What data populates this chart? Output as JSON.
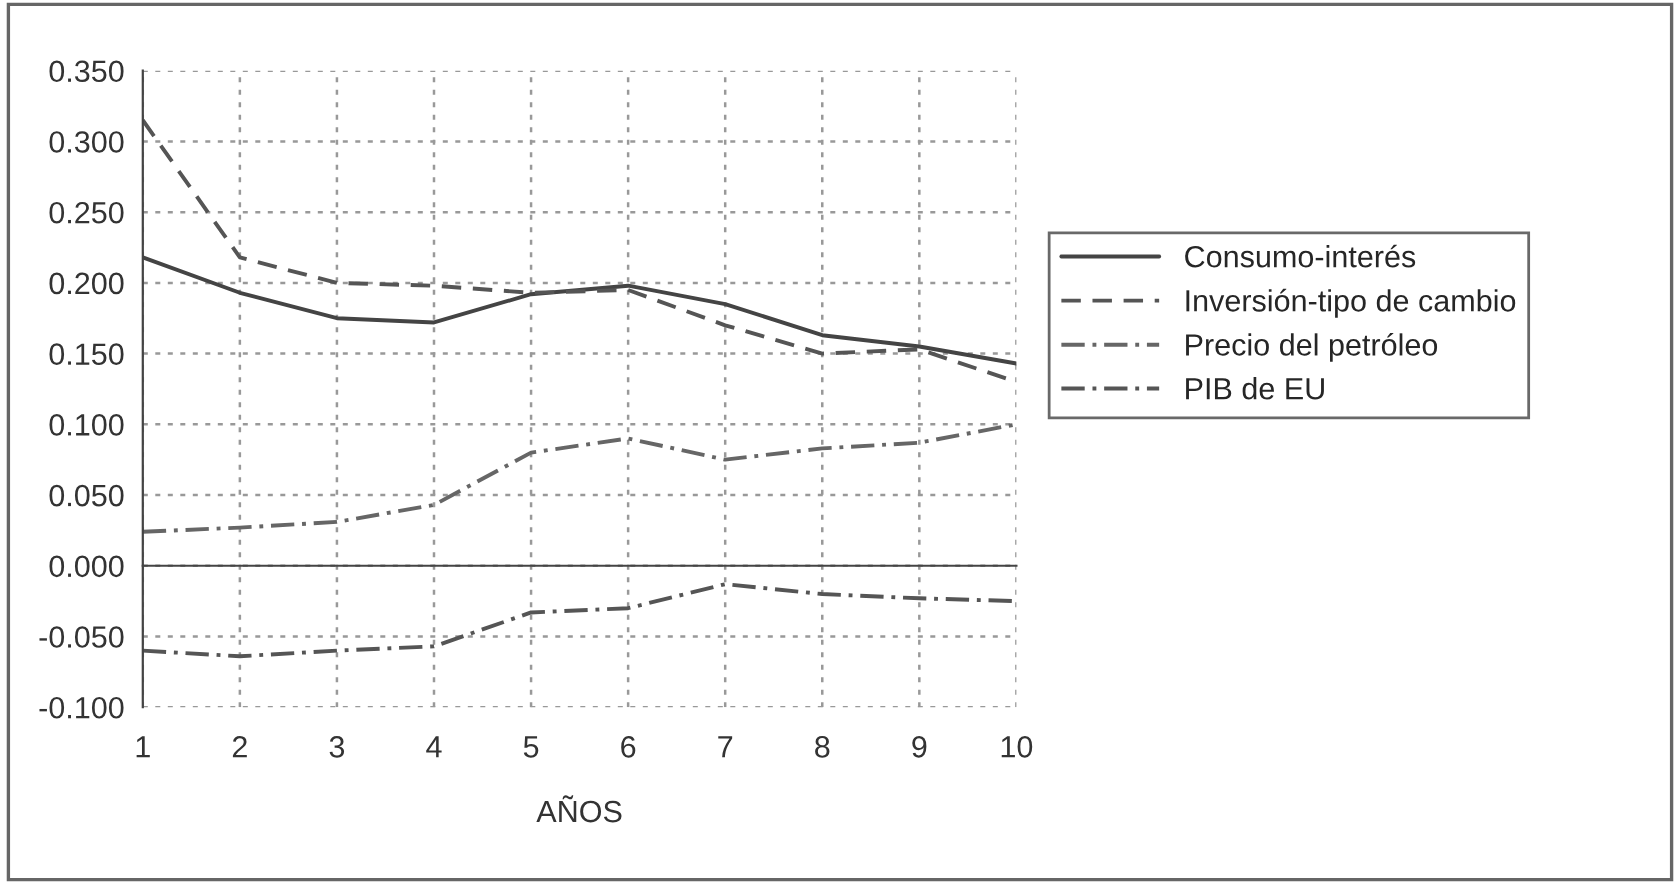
{
  "chart_data": {
    "type": "line",
    "xlabel": "AÑOS",
    "categories": [
      "1",
      "2",
      "3",
      "4",
      "5",
      "6",
      "7",
      "8",
      "9",
      "10"
    ],
    "series": [
      {
        "name": "Consumo-interés",
        "color": "#444444",
        "line_style": "solid",
        "values": [
          0.218,
          0.193,
          0.175,
          0.172,
          0.192,
          0.198,
          0.185,
          0.163,
          0.155,
          0.143
        ]
      },
      {
        "name": "Inversión-tipo de cambio",
        "color": "#555555",
        "line_style": "dashed",
        "values": [
          0.315,
          0.218,
          0.2,
          0.198,
          0.193,
          0.195,
          0.17,
          0.15,
          0.153,
          0.13
        ]
      },
      {
        "name": "Precio del petróleo",
        "color": "#666666",
        "line_style": "dashdot",
        "values": [
          0.024,
          0.027,
          0.031,
          0.043,
          0.08,
          0.09,
          0.075,
          0.083,
          0.087,
          0.1
        ]
      },
      {
        "name": "PIB de EU",
        "color": "#555555",
        "line_style": "dashdot",
        "values": [
          -0.06,
          -0.064,
          -0.06,
          -0.057,
          -0.033,
          -0.03,
          -0.013,
          -0.02,
          -0.023,
          -0.025
        ]
      }
    ],
    "ylim": [
      -0.1,
      0.35
    ],
    "yticks": [
      {
        "value": -0.1,
        "label": "-0.100"
      },
      {
        "value": -0.05,
        "label": "-0.050"
      },
      {
        "value": 0,
        "label": "0.000"
      },
      {
        "value": 0.05,
        "label": "0.050"
      },
      {
        "value": 0.1,
        "label": "0.100"
      },
      {
        "value": 0.15,
        "label": "0.150"
      },
      {
        "value": 0.2,
        "label": "0.200"
      },
      {
        "value": 0.25,
        "label": "0.250"
      },
      {
        "value": 0.3,
        "label": "0.300"
      },
      {
        "value": 0.35,
        "label": "0.350"
      }
    ],
    "grid": true,
    "legend": "right",
    "marker": "none"
  }
}
